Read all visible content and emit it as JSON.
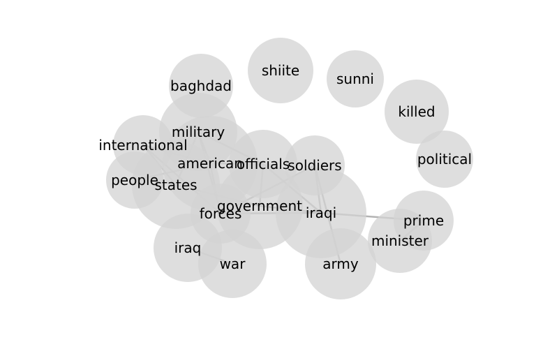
{
  "nodes": [
    {
      "id": "baghdad",
      "label": "baghdad"
    },
    {
      "id": "shiite",
      "label": "shiite"
    },
    {
      "id": "sunni",
      "label": "sunni"
    },
    {
      "id": "killed",
      "label": "killed"
    },
    {
      "id": "political",
      "label": "political"
    },
    {
      "id": "military",
      "label": "military"
    },
    {
      "id": "international",
      "label": "international"
    },
    {
      "id": "american",
      "label": "american"
    },
    {
      "id": "officials",
      "label": "officials"
    },
    {
      "id": "soldiers",
      "label": "soldiers"
    },
    {
      "id": "people",
      "label": "people"
    },
    {
      "id": "states",
      "label": "states"
    },
    {
      "id": "government",
      "label": "government"
    },
    {
      "id": "forces",
      "label": "forces"
    },
    {
      "id": "iraqi",
      "label": "iraqi"
    },
    {
      "id": "prime",
      "label": "prime"
    },
    {
      "id": "minister",
      "label": "minister"
    },
    {
      "id": "iraq",
      "label": "iraq"
    },
    {
      "id": "war",
      "label": "war"
    },
    {
      "id": "army",
      "label": "army"
    }
  ],
  "edges": [
    [
      "military",
      "american"
    ],
    [
      "military",
      "forces"
    ],
    [
      "military",
      "officials"
    ],
    [
      "military",
      "states"
    ],
    [
      "international",
      "american"
    ],
    [
      "international",
      "forces"
    ],
    [
      "international",
      "states"
    ],
    [
      "american",
      "officials"
    ],
    [
      "american",
      "forces"
    ],
    [
      "people",
      "american"
    ],
    [
      "states",
      "government"
    ],
    [
      "officials",
      "government"
    ],
    [
      "officials",
      "iraqi"
    ],
    [
      "soldiers",
      "iraqi"
    ],
    [
      "soldiers",
      "army"
    ],
    [
      "soldiers",
      "forces"
    ],
    [
      "government",
      "iraqi"
    ],
    [
      "forces",
      "iraqi"
    ],
    [
      "iraqi",
      "prime"
    ],
    [
      "prime",
      "minister"
    ],
    [
      "iraq",
      "war"
    ]
  ]
}
